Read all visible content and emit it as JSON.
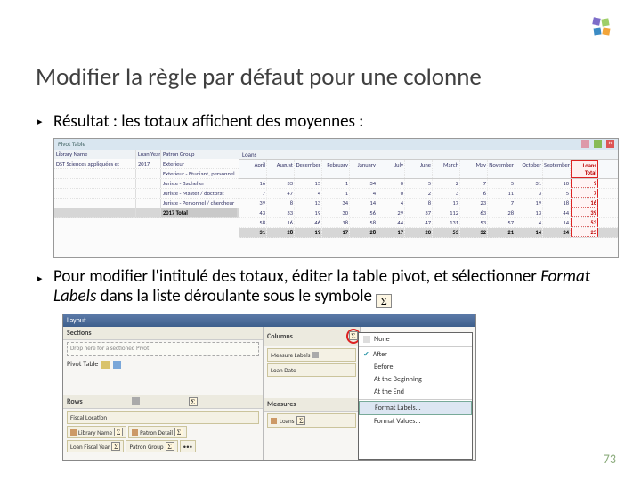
{
  "colors": {
    "accent_red": "#d22",
    "purple": "#7d6dc9",
    "green": "#9fcf68",
    "blue": "#3b8bc4",
    "orange": "#f2a53a",
    "header_blue": "#3e5f8c",
    "panel_beige": "#f4f1e4",
    "text_navy": "#336"
  },
  "title": "Modifier la règle par défaut pour une colonne",
  "bullet1": "Résultat : les totaux affichent des moyennes :",
  "bullet2_pre": "Pour modifier l'intitulé des totaux, éditer la table pivot, et sélectionner ",
  "bullet2_italic": "Format Labels",
  "bullet2_post": " dans la liste déroulante sous le symbole ",
  "pivot": {
    "title": "Pivot Table",
    "left_headers": [
      "Library Name",
      "Loan Year",
      "Patron Group"
    ],
    "library": "DST Sciences appliquées et",
    "year": "2017",
    "groups": [
      "Exterieur",
      "Exterieur - Etudiant, personnel",
      "Juriste - Bachelier",
      "Juriste - Master / doctorat",
      "Juriste - Personnel / chercheur"
    ],
    "year_total_label": "2017 Total",
    "months_header": "Loans",
    "months": [
      "April",
      "August",
      "December",
      "February",
      "January",
      "July",
      "June",
      "March",
      "May",
      "November",
      "October",
      "September",
      "Loans Total"
    ],
    "rows": [
      [
        16,
        33,
        15,
        1,
        34,
        0,
        5,
        2,
        7,
        5,
        31,
        10,
        9
      ],
      [
        7,
        47,
        4,
        1,
        4,
        0,
        2,
        3,
        6,
        11,
        3,
        5,
        7
      ],
      [
        39,
        8,
        13,
        34,
        14,
        4,
        8,
        17,
        23,
        7,
        19,
        18,
        16
      ],
      [
        43,
        33,
        19,
        30,
        56,
        29,
        37,
        112,
        63,
        28,
        13,
        44,
        39
      ],
      [
        58,
        16,
        46,
        18,
        58,
        44,
        47,
        131,
        53,
        57,
        4,
        14,
        53
      ],
      [
        31,
        28,
        19,
        17,
        28,
        17,
        20,
        53,
        32,
        21,
        14,
        24,
        25
      ]
    ]
  },
  "layout": {
    "header": "Layout",
    "sections_label": "Sections",
    "drop_hint": "Drop here for a sectioned Pivot",
    "pivot_table_label": "Pivot Table",
    "rows_label": "Rows",
    "row_chips": [
      {
        "folder": "Fiscal Location",
        "field": "Library Name"
      },
      {
        "folder": "Loan Date",
        "field": "Loan Fiscal Year"
      },
      {
        "folder": "Patron Detail",
        "field": "Patron Group"
      },
      {
        "folder": "",
        "field": "•••"
      }
    ],
    "columns_label": "Columns",
    "columns_items": [
      "Measure Labels",
      "Loan Date"
    ],
    "measures_label": "Measures",
    "measures_item": "Loans",
    "menu": [
      "None",
      "After",
      "Before",
      "At the Beginning",
      "At the End",
      "Format Labels...",
      "Format Values..."
    ]
  },
  "page": "73"
}
